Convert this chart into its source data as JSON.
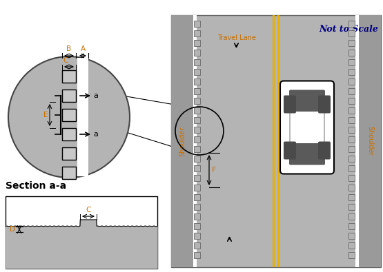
{
  "bg_color": "#ffffff",
  "road_gray": "#b4b4b4",
  "shoulder_gray": "#a0a0a0",
  "yellow_line": "#e8b000",
  "label_orange": "#c87000",
  "label_blue": "#000080",
  "title": "Not to Scale",
  "section_title": "Section a-a",
  "travel_lane": "Travel Lane",
  "shoulder_text": "Shoulder",
  "figsize": [
    5.55,
    3.95
  ],
  "dpi": 100
}
